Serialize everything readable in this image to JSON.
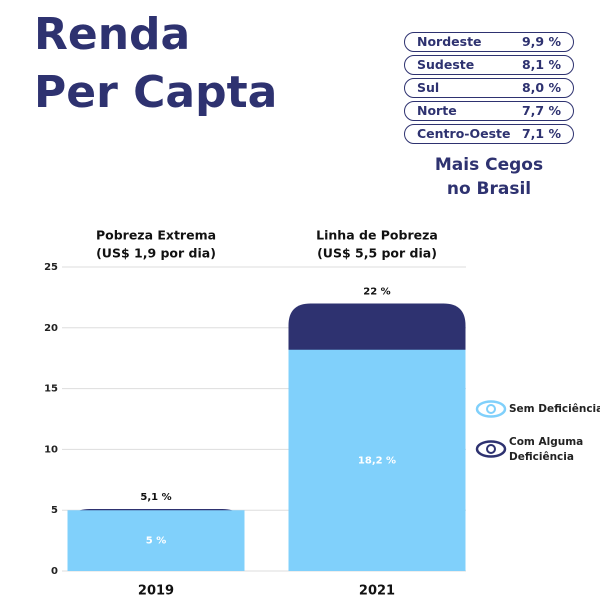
{
  "header": {
    "title_lines": [
      "Renda",
      "Per Capta"
    ]
  },
  "ranking": {
    "rows": [
      [
        "Nordeste",
        "9,9 %"
      ],
      [
        "Sudeste",
        "8,1 %"
      ],
      [
        "Sul",
        "8,0 %"
      ],
      [
        "Norte",
        "7,7 %"
      ],
      [
        "Centro-Oeste",
        "7,1 %"
      ]
    ],
    "caption_lines": [
      "Mais Cegos",
      "no Brasil"
    ]
  },
  "chart_data": {
    "type": "bar",
    "column_headers": [
      [
        "Pobreza Extrema",
        "(US$ 1,9 por dia)"
      ],
      [
        "Linha de Pobreza",
        "(US$ 5,5 por dia)"
      ]
    ],
    "categories": [
      "2019",
      "2021"
    ],
    "series": [
      {
        "name": "Com Alguma Deficiência",
        "color": "#2e3270",
        "values": [
          5.1,
          22
        ],
        "value_labels": [
          "5,1 %",
          "22 %"
        ]
      },
      {
        "name": "Sem Deficiência",
        "color": "#80d0fb",
        "values": [
          5,
          18.2
        ],
        "value_labels": [
          "5  %",
          "18,2 %"
        ]
      }
    ],
    "ylim": [
      0,
      25
    ],
    "yticks": [
      0,
      5,
      10,
      15,
      20,
      25
    ],
    "grid": true
  }
}
